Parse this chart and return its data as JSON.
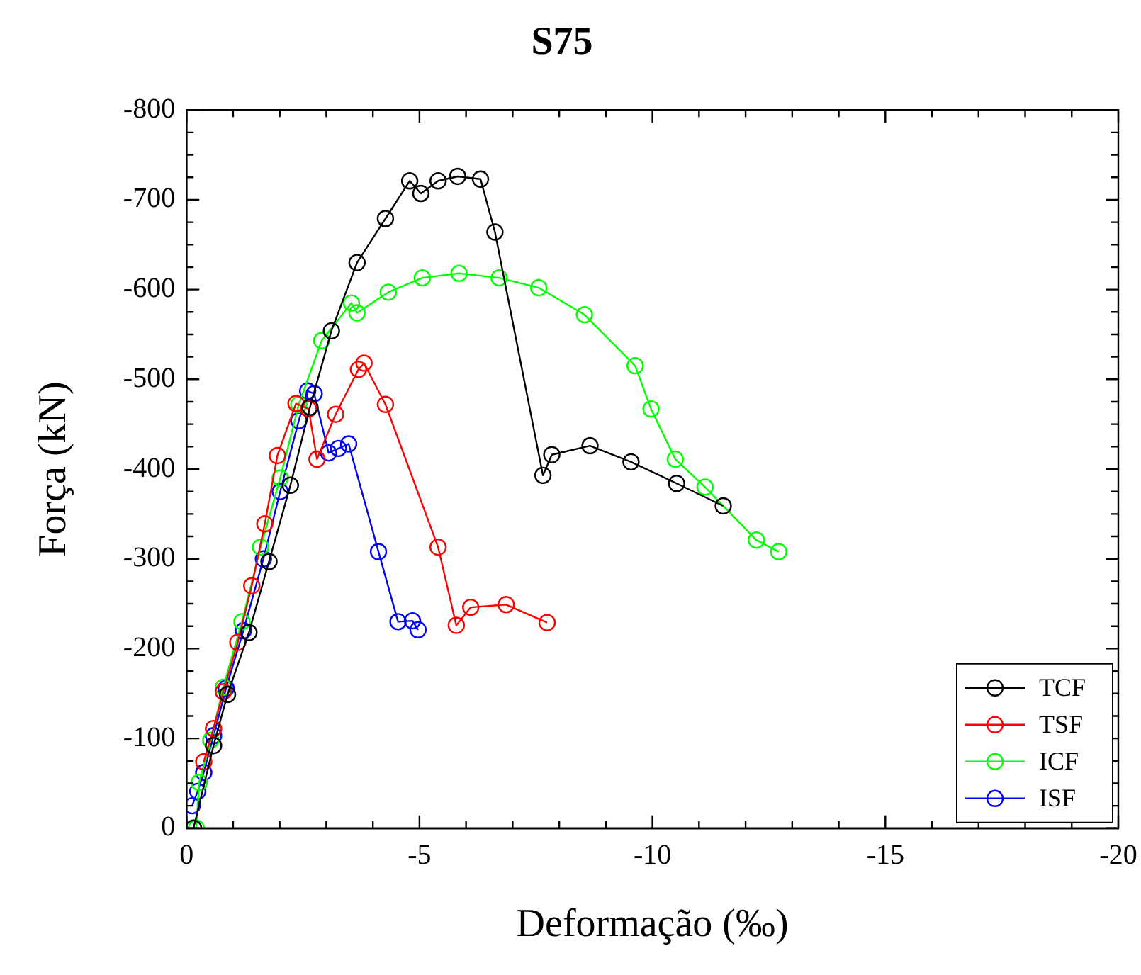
{
  "chart_data": {
    "type": "line",
    "title": "S75",
    "xlabel": "Deformação (‰)",
    "ylabel": "Força (kN)",
    "xlim": [
      0,
      -20
    ],
    "ylim": [
      0,
      -800
    ],
    "xticks": [
      0,
      {
        "value": -1,
        "label": null
      },
      {
        "value": -2,
        "label": null
      },
      {
        "value": -3,
        "label": null
      },
      {
        "value": -4,
        "label": null
      },
      -5,
      {
        "value": -6,
        "label": null
      },
      {
        "value": -7,
        "label": null
      },
      {
        "value": -8,
        "label": null
      },
      {
        "value": -9,
        "label": null
      },
      -10,
      {
        "value": -11,
        "label": null
      },
      {
        "value": -12,
        "label": null
      },
      {
        "value": -13,
        "label": null
      },
      {
        "value": -14,
        "label": null
      },
      -15,
      {
        "value": -16,
        "label": null
      },
      {
        "value": -17,
        "label": null
      },
      {
        "value": -18,
        "label": null
      },
      {
        "value": -19,
        "label": null
      },
      -20
    ],
    "yticks": [
      0,
      {
        "value": -25,
        "label": null
      },
      -100,
      {
        "value": -125,
        "label": null
      },
      -200,
      {
        "value": -225,
        "label": null
      },
      -300,
      {
        "value": -325,
        "label": null
      },
      -400,
      {
        "value": -425,
        "label": null
      },
      -500,
      {
        "value": -525,
        "label": null
      },
      -600,
      {
        "value": -625,
        "label": null
      },
      -700,
      {
        "value": -725,
        "label": null
      },
      -800,
      {
        "value": -50,
        "label": null
      },
      {
        "value": -75,
        "label": null
      },
      {
        "value": -150,
        "label": null
      },
      {
        "value": -175,
        "label": null
      },
      {
        "value": -250,
        "label": null
      },
      {
        "value": -275,
        "label": null
      },
      {
        "value": -350,
        "label": null
      },
      {
        "value": -375,
        "label": null
      },
      {
        "value": -450,
        "label": null
      },
      {
        "value": -475,
        "label": null
      },
      {
        "value": -550,
        "label": null
      },
      {
        "value": -575,
        "label": null
      },
      {
        "value": -650,
        "label": null
      },
      {
        "value": -675,
        "label": null
      },
      {
        "value": -750,
        "label": null
      },
      {
        "value": -775,
        "label": null
      }
    ],
    "grid": false,
    "legend": "bottom right",
    "marker": "circle",
    "line_style": "solid",
    "series": [
      {
        "name": "TCF",
        "color": "#000000",
        "x": [
          -0.15,
          -0.58,
          -0.88,
          -1.34,
          -1.77,
          -2.23,
          -2.65,
          -3.11,
          -3.66,
          -4.27,
          -4.79,
          -5.03,
          -5.4,
          -5.82,
          -6.31,
          -6.62,
          -7.65,
          -7.84,
          -8.66,
          -9.54,
          -10.52,
          -11.52
        ],
        "values": [
          0,
          -92,
          -149,
          -218,
          -297,
          -382,
          -469,
          -554,
          -630,
          -679,
          -721,
          -707,
          -721,
          -726,
          -723,
          -664,
          -393,
          -416,
          -426,
          -408,
          -384,
          -359
        ]
      },
      {
        "name": "TSF",
        "color": "#ff0000",
        "x": [
          -0.37,
          -0.58,
          -0.79,
          -1.1,
          -1.4,
          -1.68,
          -1.95,
          -2.35,
          -2.62,
          -2.8,
          -3.2,
          -3.69,
          -3.81,
          -4.27,
          -5.4,
          -5.79,
          -6.1,
          -6.86,
          -7.74
        ],
        "values": [
          -74,
          -111,
          -152,
          -207,
          -270,
          -339,
          -415,
          -473,
          -467,
          -411,
          -461,
          -511,
          -518,
          -472,
          -313,
          -226,
          -246,
          -249,
          -229
        ]
      },
      {
        "name": "ICF",
        "color": "#00ff00",
        "x": [
          -0.21,
          -0.27,
          -0.52,
          -0.79,
          -1.19,
          -1.59,
          -2.01,
          -2.41,
          -2.9,
          -3.54,
          -3.66,
          -4.33,
          -5.06,
          -5.85,
          -6.71,
          -7.56,
          -8.54,
          -9.63,
          -9.97,
          -10.49,
          -11.13,
          -12.23,
          -12.71
        ],
        "values": [
          0,
          -51,
          -98,
          -157,
          -230,
          -313,
          -390,
          -472,
          -543,
          -585,
          -574,
          -597,
          -613,
          -618,
          -613,
          -602,
          -572,
          -515,
          -467,
          -411,
          -380,
          -321,
          -308
        ]
      },
      {
        "name": "ISF",
        "color": "#0000ff",
        "x": [
          -0.12,
          -0.24,
          -0.37,
          -0.58,
          -0.85,
          -1.22,
          -1.65,
          -2.01,
          -2.41,
          -2.6,
          -2.74,
          -3.05,
          -3.26,
          -3.48,
          -4.12,
          -4.54,
          -4.85,
          -4.97
        ],
        "values": [
          -25,
          -41,
          -62,
          -103,
          -156,
          -220,
          -300,
          -375,
          -454,
          -487,
          -484,
          -418,
          -423,
          -428,
          -308,
          -230,
          -231,
          -221
        ]
      }
    ]
  }
}
